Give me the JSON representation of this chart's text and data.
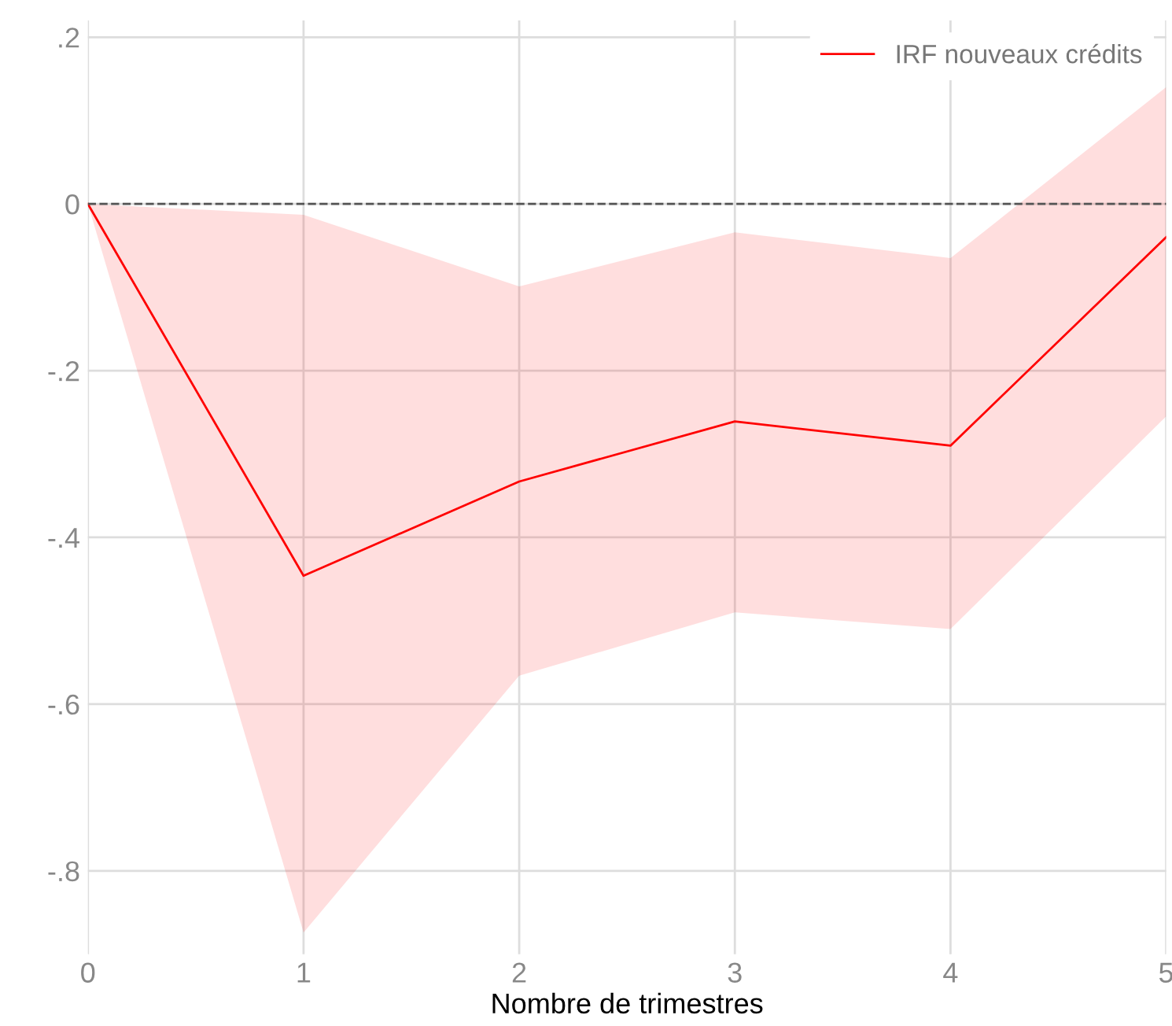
{
  "chart_data": {
    "type": "line",
    "xlabel": "Nombre de trimestres",
    "x": [
      0,
      1,
      2,
      3,
      4,
      5
    ],
    "series": [
      {
        "name": "IRF nouveaux crédits",
        "color": "#ff0000",
        "values": [
          0,
          -0.446,
          -0.333,
          -0.261,
          -0.29,
          -0.04
        ],
        "lower": [
          0,
          -0.874,
          -0.566,
          -0.49,
          -0.51,
          -0.255
        ],
        "upper": [
          0,
          -0.013,
          -0.099,
          -0.034,
          -0.065,
          0.14
        ]
      }
    ],
    "xlim": [
      0,
      5
    ],
    "ylim": [
      -0.9,
      0.22
    ],
    "xticks": [
      0,
      1,
      2,
      3,
      4,
      5
    ],
    "yticks": [
      {
        "value": 0.2,
        "label": ".2"
      },
      {
        "value": 0,
        "label": "0"
      },
      {
        "value": -0.2,
        "label": "-.2"
      },
      {
        "value": -0.4,
        "label": "-.4"
      },
      {
        "value": -0.6,
        "label": "-.6"
      },
      {
        "value": -0.8,
        "label": "-.8"
      }
    ],
    "ref_lines": [
      {
        "axis": "y",
        "value": 0,
        "color": "#555555",
        "line_style": "dashed"
      }
    ],
    "grid": true,
    "legend": "top right",
    "line_style": "solid",
    "marker": "none"
  }
}
